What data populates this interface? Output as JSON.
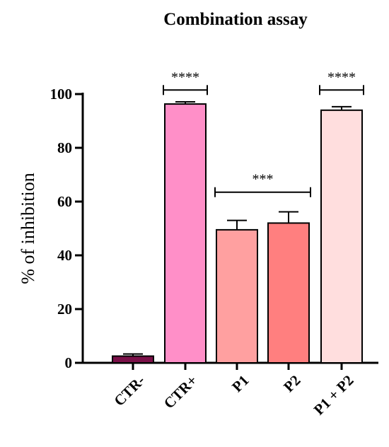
{
  "chart_data": {
    "type": "bar",
    "title": "Combination assay",
    "xlabel": "",
    "ylabel": "% of inhibition",
    "ylim": [
      0,
      100
    ],
    "yticks": [
      0,
      20,
      40,
      60,
      80,
      100
    ],
    "categories": [
      "CTR-",
      "CTR+",
      "P1",
      "P2",
      "P1 + P2"
    ],
    "values": [
      2.5,
      96.3,
      49.5,
      52.0,
      94.0
    ],
    "errors": [
      0.8,
      0.8,
      3.5,
      4.2,
      1.3
    ],
    "colors": [
      "#7a1048",
      "#ff8fc8",
      "#ffa0a0",
      "#ff7f7f",
      "#ffdede"
    ],
    "significance": [
      {
        "label": "****",
        "from": 1,
        "to": 1,
        "y": 101.5
      },
      {
        "label": "***",
        "from": 2,
        "to": 3,
        "y": 63.5
      },
      {
        "label": "****",
        "from": 4,
        "to": 4,
        "y": 101.5
      }
    ],
    "grid": false,
    "legend": "none"
  }
}
